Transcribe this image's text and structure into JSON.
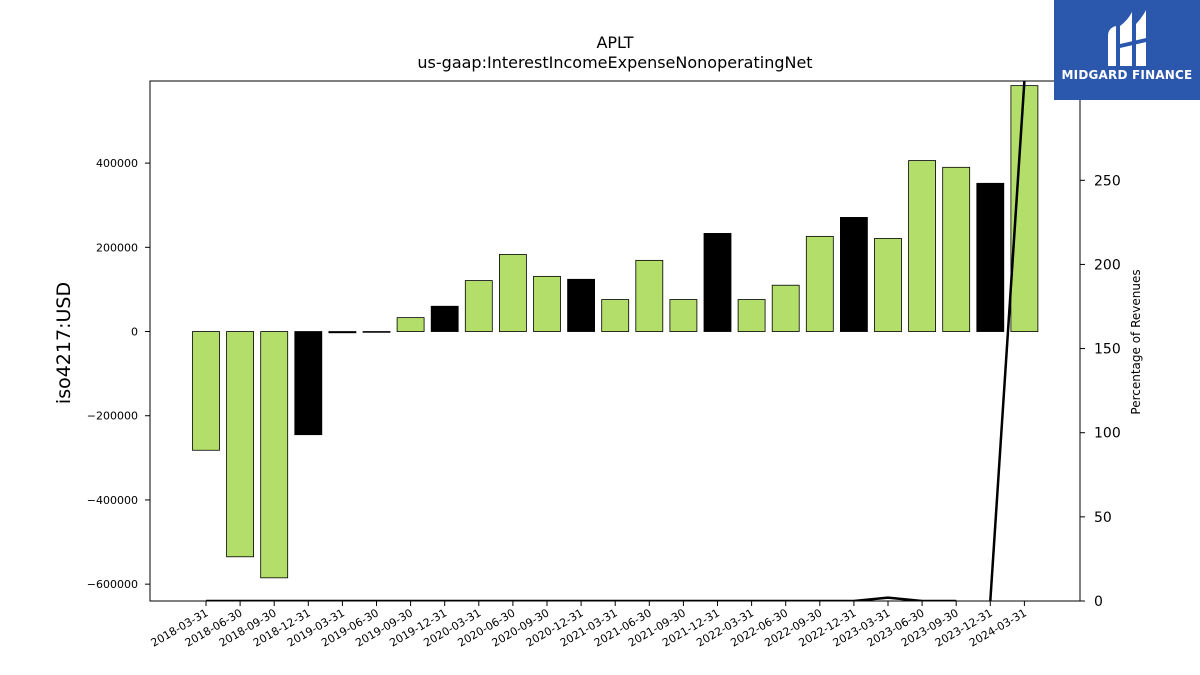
{
  "chart_data": {
    "type": "bar",
    "title": "APLT",
    "subtitle": "us-gaap:InterestIncomeExpenseNonoperatingNet",
    "ylabel": "iso4217:USD",
    "y2label": "Percentage of Revenues",
    "ylim": [
      -640000,
      595000
    ],
    "y2lim": [
      0,
      309
    ],
    "yticks": [
      -600000,
      -400000,
      -200000,
      0,
      200000,
      400000
    ],
    "y2ticks": [
      0,
      50,
      100,
      150,
      200,
      250
    ],
    "categories": [
      "2018-03-31",
      "2018-06-30",
      "2018-09-30",
      "2018-12-31",
      "2019-03-31",
      "2019-06-30",
      "2019-09-30",
      "2019-12-31",
      "2020-03-31",
      "2020-06-30",
      "2020-09-30",
      "2020-12-31",
      "2021-03-31",
      "2021-06-30",
      "2021-09-30",
      "2021-12-31",
      "2022-03-31",
      "2022-06-30",
      "2022-09-30",
      "2022-12-31",
      "2023-03-31",
      "2023-06-30",
      "2023-09-30",
      "2023-12-31",
      "2024-03-31"
    ],
    "values": [
      -282000,
      -535000,
      -585000,
      -245000,
      -3000,
      -1000,
      33000,
      60000,
      121000,
      183000,
      131000,
      124000,
      76000,
      169000,
      76000,
      233000,
      76000,
      110000,
      226000,
      271000,
      221000,
      406000,
      390000,
      352000,
      584000
    ],
    "bar_colors": [
      "#b3de69",
      "#b3de69",
      "#b3de69",
      "#000000",
      "#000000",
      "#b3de69",
      "#b3de69",
      "#000000",
      "#b3de69",
      "#b3de69",
      "#b3de69",
      "#000000",
      "#b3de69",
      "#b3de69",
      "#b3de69",
      "#000000",
      "#b3de69",
      "#b3de69",
      "#b3de69",
      "#000000",
      "#b3de69",
      "#b3de69",
      "#b3de69",
      "#000000",
      "#b3de69"
    ],
    "percentage_line": {
      "segments": [
        {
          "x_index": [
            0,
            1,
            2,
            3,
            4,
            5,
            6,
            7,
            8,
            9,
            10,
            11,
            12,
            13,
            14,
            15,
            16,
            17,
            18,
            19,
            20,
            21,
            22
          ],
          "values": [
            0,
            0,
            0,
            0,
            0,
            0,
            0,
            0,
            0,
            0,
            0,
            0,
            0,
            0,
            0,
            0,
            0,
            0,
            0,
            0,
            2,
            0,
            0
          ]
        },
        {
          "x_index": [
            23,
            24
          ],
          "values": [
            0,
            309
          ]
        }
      ],
      "color": "#000000"
    },
    "grid": false
  },
  "logo": {
    "text": "MIDGARD FINANCE",
    "color": "#2b58ad"
  }
}
